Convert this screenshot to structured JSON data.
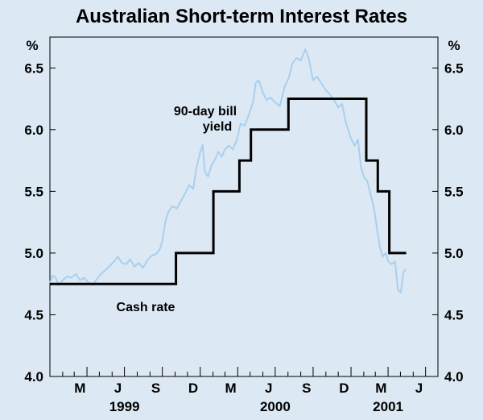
{
  "chart_data": {
    "type": "line",
    "title": "Australian Short-term Interest Rates",
    "y_unit_left": "%",
    "y_unit_right": "%",
    "ylim": [
      4.0,
      6.75
    ],
    "yticks": [
      4.0,
      4.5,
      5.0,
      5.5,
      6.0,
      6.5
    ],
    "ytick_labels": [
      "4.0",
      "4.5",
      "5.0",
      "5.5",
      "6.0",
      "6.5"
    ],
    "xlim": [
      "1999-01-01",
      "2001-07-31"
    ],
    "x_month_labels": [
      {
        "label": "M",
        "date": "1999-03-15"
      },
      {
        "label": "J",
        "date": "1999-06-15"
      },
      {
        "label": "S",
        "date": "1999-09-15"
      },
      {
        "label": "D",
        "date": "1999-12-15"
      },
      {
        "label": "M",
        "date": "2000-03-15"
      },
      {
        "label": "J",
        "date": "2000-06-15"
      },
      {
        "label": "S",
        "date": "2000-09-15"
      },
      {
        "label": "D",
        "date": "2000-12-15"
      },
      {
        "label": "M",
        "date": "2001-03-15"
      },
      {
        "label": "J",
        "date": "2001-06-15"
      }
    ],
    "x_year_labels": [
      {
        "label": "1999",
        "date": "1999-07-01"
      },
      {
        "label": "2000",
        "date": "2000-07-01"
      },
      {
        "label": "2001",
        "date": "2001-04-01"
      }
    ],
    "grid": false,
    "colors": {
      "bill": "#a9cfee",
      "cash": "#000000",
      "background": "#dce9f5"
    },
    "annotations": [
      {
        "lines": [
          "90-day bill",
          "yield"
        ],
        "series": "bill"
      },
      {
        "lines": [
          "Cash rate"
        ],
        "series": "cash"
      }
    ],
    "series": [
      {
        "key": "cash",
        "name": "Cash rate",
        "step": true,
        "points": [
          [
            "1999-01-01",
            4.75
          ],
          [
            "1999-11-03",
            5.0
          ],
          [
            "2000-02-02",
            5.5
          ],
          [
            "2000-04-05",
            5.75
          ],
          [
            "2000-05-03",
            6.0
          ],
          [
            "2000-08-02",
            6.25
          ],
          [
            "2001-02-07",
            5.75
          ],
          [
            "2001-03-07",
            5.5
          ],
          [
            "2001-04-04",
            5.0
          ],
          [
            "2001-05-15",
            5.0
          ]
        ]
      },
      {
        "key": "bill",
        "name": "90-day bill yield",
        "step": false,
        "points": [
          [
            "1999-01-01",
            4.76
          ],
          [
            "1999-01-08",
            4.82
          ],
          [
            "1999-01-15",
            4.8
          ],
          [
            "1999-01-22",
            4.74
          ],
          [
            "1999-02-01",
            4.78
          ],
          [
            "1999-02-12",
            4.81
          ],
          [
            "1999-02-22",
            4.8
          ],
          [
            "1999-03-05",
            4.83
          ],
          [
            "1999-03-15",
            4.78
          ],
          [
            "1999-03-25",
            4.8
          ],
          [
            "1999-04-05",
            4.76
          ],
          [
            "1999-04-15",
            4.74
          ],
          [
            "1999-04-25",
            4.79
          ],
          [
            "1999-05-05",
            4.83
          ],
          [
            "1999-05-15",
            4.86
          ],
          [
            "1999-05-25",
            4.89
          ],
          [
            "1999-06-05",
            4.93
          ],
          [
            "1999-06-15",
            4.97
          ],
          [
            "1999-06-25",
            4.92
          ],
          [
            "1999-07-05",
            4.91
          ],
          [
            "1999-07-15",
            4.95
          ],
          [
            "1999-07-25",
            4.89
          ],
          [
            "1999-08-05",
            4.92
          ],
          [
            "1999-08-15",
            4.88
          ],
          [
            "1999-08-25",
            4.94
          ],
          [
            "1999-09-05",
            4.98
          ],
          [
            "1999-09-15",
            4.99
          ],
          [
            "1999-09-25",
            5.03
          ],
          [
            "1999-10-01",
            5.1
          ],
          [
            "1999-10-08",
            5.25
          ],
          [
            "1999-10-15",
            5.33
          ],
          [
            "1999-10-25",
            5.38
          ],
          [
            "1999-11-05",
            5.36
          ],
          [
            "1999-11-15",
            5.42
          ],
          [
            "1999-11-25",
            5.48
          ],
          [
            "1999-12-05",
            5.55
          ],
          [
            "1999-12-15",
            5.52
          ],
          [
            "1999-12-22",
            5.68
          ],
          [
            "2000-01-01",
            5.82
          ],
          [
            "2000-01-07",
            5.88
          ],
          [
            "2000-01-12",
            5.66
          ],
          [
            "2000-01-20",
            5.62
          ],
          [
            "2000-01-28",
            5.71
          ],
          [
            "2000-02-06",
            5.76
          ],
          [
            "2000-02-14",
            5.82
          ],
          [
            "2000-02-22",
            5.78
          ],
          [
            "2000-03-01",
            5.84
          ],
          [
            "2000-03-10",
            5.87
          ],
          [
            "2000-03-20",
            5.84
          ],
          [
            "2000-03-30",
            5.92
          ],
          [
            "2000-04-08",
            6.05
          ],
          [
            "2000-04-18",
            6.03
          ],
          [
            "2000-04-28",
            6.12
          ],
          [
            "2000-05-08",
            6.22
          ],
          [
            "2000-05-15",
            6.38
          ],
          [
            "2000-05-22",
            6.4
          ],
          [
            "2000-06-01",
            6.3
          ],
          [
            "2000-06-10",
            6.24
          ],
          [
            "2000-06-20",
            6.26
          ],
          [
            "2000-07-01",
            6.22
          ],
          [
            "2000-07-12",
            6.19
          ],
          [
            "2000-07-24",
            6.35
          ],
          [
            "2000-08-03",
            6.42
          ],
          [
            "2000-08-12",
            6.54
          ],
          [
            "2000-08-22",
            6.58
          ],
          [
            "2000-09-01",
            6.56
          ],
          [
            "2000-09-12",
            6.65
          ],
          [
            "2000-09-20",
            6.58
          ],
          [
            "2000-10-01",
            6.4
          ],
          [
            "2000-10-10",
            6.43
          ],
          [
            "2000-10-20",
            6.38
          ],
          [
            "2000-11-01",
            6.32
          ],
          [
            "2000-11-12",
            6.28
          ],
          [
            "2000-11-22",
            6.23
          ],
          [
            "2000-12-01",
            6.18
          ],
          [
            "2000-12-10",
            6.21
          ],
          [
            "2000-12-20",
            6.05
          ],
          [
            "2001-01-01",
            5.93
          ],
          [
            "2001-01-10",
            5.87
          ],
          [
            "2001-01-18",
            5.92
          ],
          [
            "2001-01-25",
            5.7
          ],
          [
            "2001-02-01",
            5.62
          ],
          [
            "2001-02-10",
            5.58
          ],
          [
            "2001-02-18",
            5.47
          ],
          [
            "2001-02-26",
            5.36
          ],
          [
            "2001-03-05",
            5.2
          ],
          [
            "2001-03-12",
            5.05
          ],
          [
            "2001-03-19",
            4.97
          ],
          [
            "2001-03-26",
            5.0
          ],
          [
            "2001-04-02",
            4.93
          ],
          [
            "2001-04-10",
            4.91
          ],
          [
            "2001-04-18",
            4.93
          ],
          [
            "2001-04-25",
            4.7
          ],
          [
            "2001-05-02",
            4.68
          ],
          [
            "2001-05-08",
            4.84
          ],
          [
            "2001-05-14",
            4.87
          ]
        ]
      }
    ]
  }
}
